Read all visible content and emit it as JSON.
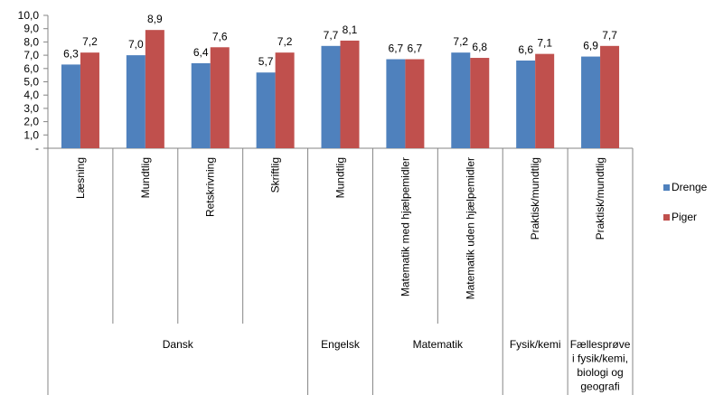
{
  "chart_data": {
    "type": "bar",
    "y_tick_labels": [
      "-",
      "1,0",
      "2,0",
      "3,0",
      "4,0",
      "5,0",
      "6,0",
      "7,0",
      "8,0",
      "9,0",
      "10,0"
    ],
    "ylim": [
      0,
      10
    ],
    "grid": false,
    "legend_placement": "right",
    "categories": [
      {
        "label": "Læsning",
        "group": "Dansk"
      },
      {
        "label": "Mundtlig",
        "group": "Dansk"
      },
      {
        "label": "Retskrivning",
        "group": "Dansk"
      },
      {
        "label": "Skriftlig",
        "group": "Dansk"
      },
      {
        "label": "Mundtlig",
        "group": "Engelsk"
      },
      {
        "label": "Matematik med hjælpemidler",
        "group": "Matematik"
      },
      {
        "label": "Matematik uden hjælpemidler",
        "group": "Matematik"
      },
      {
        "label": "Praktisk/mundtlig",
        "group": "Fysik/kemi"
      },
      {
        "label": "Praktisk/mundtlig",
        "group": "Fællesprøve i fysik/kemi, biologi og geografi"
      }
    ],
    "groups": [
      {
        "name": "Dansk",
        "span": 4
      },
      {
        "name": "Engelsk",
        "span": 1
      },
      {
        "name": "Matematik",
        "span": 2
      },
      {
        "name": "Fysik/kemi",
        "span": 1
      },
      {
        "name": "Fællesprøve i fysik/kemi, biologi og geografi",
        "span": 1,
        "lines": [
          "Fællesprøve",
          "i fysik/kemi,",
          "biologi og",
          "geografi"
        ]
      }
    ],
    "series": [
      {
        "name": "Drenge",
        "color": "#4F81BD",
        "values": [
          6.3,
          7.0,
          6.4,
          5.7,
          7.7,
          6.7,
          7.2,
          6.6,
          6.9
        ],
        "labels": [
          "6,3",
          "7,0",
          "6,4",
          "5,7",
          "7,7",
          "6,7",
          "7,2",
          "6,6",
          "6,9"
        ]
      },
      {
        "name": "Piger",
        "color": "#C0504D",
        "values": [
          7.2,
          8.9,
          7.6,
          7.2,
          8.1,
          6.7,
          6.8,
          7.1,
          7.7
        ],
        "labels": [
          "7,2",
          "8,9",
          "7,6",
          "7,2",
          "8,1",
          "6,7",
          "6,8",
          "7,1",
          "7,7"
        ]
      }
    ]
  }
}
